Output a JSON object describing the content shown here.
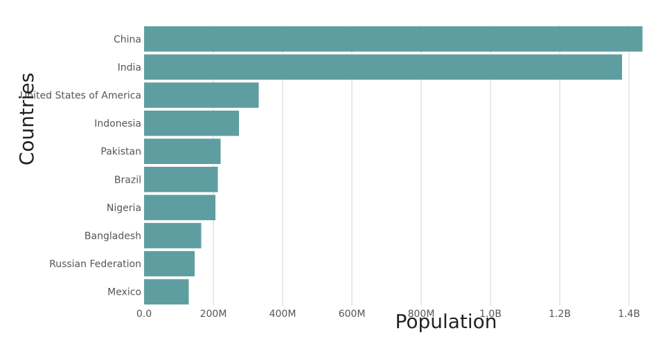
{
  "chart_data": {
    "type": "bar",
    "orientation": "horizontal",
    "categories": [
      "China",
      "India",
      "United States of America",
      "Indonesia",
      "Pakistan",
      "Brazil",
      "Nigeria",
      "Bangladesh",
      "Russian Federation",
      "Mexico"
    ],
    "values": [
      1439000000,
      1380000000,
      331000000,
      274000000,
      221000000,
      213000000,
      206000000,
      165000000,
      146000000,
      129000000
    ],
    "xlabel": "Population",
    "ylabel": "Countries",
    "xlim": [
      0,
      1440000000
    ],
    "xticks": [
      0,
      200000000,
      400000000,
      600000000,
      800000000,
      1000000000,
      1200000000,
      1400000000
    ],
    "xtick_labels": [
      "0.0",
      "200M",
      "400M",
      "600M",
      "800M",
      "1.0B",
      "1.2B",
      "1.4B"
    ],
    "grid": true,
    "bar_color": "#5f9ea0",
    "grid_color": "#d3d3d3"
  }
}
